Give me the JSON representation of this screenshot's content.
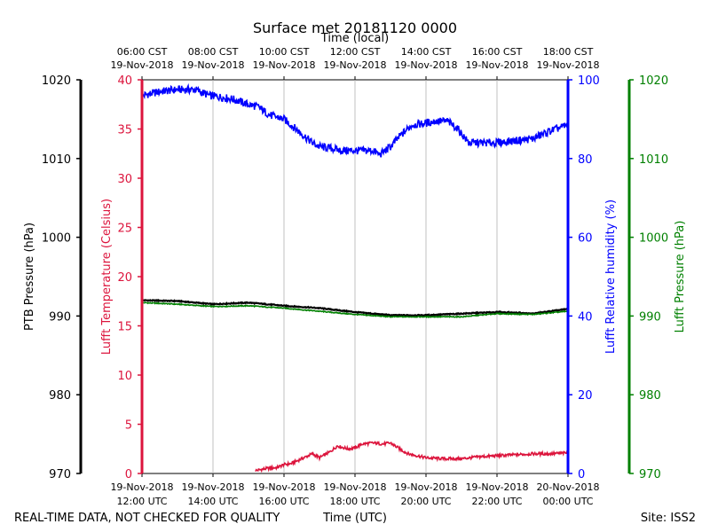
{
  "chart_data": {
    "type": "line",
    "title": "Surface met 20181120 0000",
    "top_axis_label": "Time (local)",
    "bottom_axis_label": "Time (UTC)",
    "footer_left": "REAL-TIME DATA, NOT CHECKED FOR QUALITY",
    "footer_right": "Site: ISS2",
    "x_range_hours_utc": [
      12,
      24
    ],
    "bottom_ticks": [
      {
        "hour": 12,
        "line1": "19-Nov-2018",
        "line2": "12:00 UTC"
      },
      {
        "hour": 14,
        "line1": "19-Nov-2018",
        "line2": "14:00 UTC"
      },
      {
        "hour": 16,
        "line1": "19-Nov-2018",
        "line2": "16:00 UTC"
      },
      {
        "hour": 18,
        "line1": "19-Nov-2018",
        "line2": "18:00 UTC"
      },
      {
        "hour": 20,
        "line1": "19-Nov-2018",
        "line2": "20:00 UTC"
      },
      {
        "hour": 22,
        "line1": "19-Nov-2018",
        "line2": "22:00 UTC"
      },
      {
        "hour": 24,
        "line1": "20-Nov-2018",
        "line2": "00:00 UTC"
      }
    ],
    "top_ticks": [
      {
        "hour": 12,
        "line1": "06:00 CST",
        "line2": "19-Nov-2018"
      },
      {
        "hour": 14,
        "line1": "08:00 CST",
        "line2": "19-Nov-2018"
      },
      {
        "hour": 16,
        "line1": "10:00 CST",
        "line2": "19-Nov-2018"
      },
      {
        "hour": 18,
        "line1": "12:00 CST",
        "line2": "19-Nov-2018"
      },
      {
        "hour": 20,
        "line1": "14:00 CST",
        "line2": "19-Nov-2018"
      },
      {
        "hour": 22,
        "line1": "16:00 CST",
        "line2": "19-Nov-2018"
      },
      {
        "hour": 24,
        "line1": "18:00 CST",
        "line2": "19-Nov-2018"
      }
    ],
    "axes": {
      "ptb_pressure": {
        "label": "PTB Pressure (hPa)",
        "range": [
          970,
          1020
        ],
        "ticks": [
          970,
          980,
          990,
          1000,
          1010,
          1020
        ],
        "color": "#000000"
      },
      "temperature": {
        "label": "Lufft Temperature (Celsius)",
        "range": [
          0,
          40
        ],
        "ticks": [
          0,
          5,
          10,
          15,
          20,
          25,
          30,
          35,
          40
        ],
        "color": "#dc143c"
      },
      "humidity": {
        "label": "Lufft Relative humidity (%)",
        "range": [
          0,
          100
        ],
        "ticks": [
          0,
          20,
          40,
          60,
          80,
          100
        ],
        "color": "#0000ff"
      },
      "lufft_pressure": {
        "label": "Lufft Pressure (hPa)",
        "range": [
          970,
          1020
        ],
        "ticks": [
          970,
          980,
          990,
          1000,
          1010,
          1020
        ],
        "color": "#008000"
      }
    },
    "series": [
      {
        "name": "Lufft Relative humidity (%)",
        "axis": "humidity",
        "color": "#0000ff",
        "x": [
          12.0,
          12.5,
          13.0,
          13.5,
          13.9,
          14.3,
          14.6,
          14.9,
          15.3,
          15.6,
          16.0,
          16.4,
          16.8,
          17.0,
          17.4,
          17.6,
          17.8,
          18.2,
          18.5,
          18.7,
          19.0,
          19.3,
          19.6,
          20.0,
          20.3,
          20.6,
          20.9,
          21.2,
          21.5,
          22.0,
          22.5,
          23.0,
          23.5,
          24.0
        ],
        "y": [
          96,
          97,
          97.5,
          97.5,
          96,
          95.5,
          95,
          94,
          93,
          91,
          90,
          87,
          84,
          83,
          82.5,
          82,
          82,
          82,
          82,
          81,
          83,
          86,
          88.5,
          89,
          89.5,
          89.5,
          87.5,
          84,
          84,
          84,
          84.5,
          85,
          87,
          88.5
        ]
      },
      {
        "name": "PTB Pressure (hPa)",
        "axis": "ptb_pressure",
        "color": "#000000",
        "x": [
          12.0,
          13.0,
          14.0,
          15.0,
          16.0,
          17.0,
          18.0,
          19.0,
          20.0,
          21.0,
          22.0,
          23.0,
          24.0
        ],
        "y": [
          992.0,
          991.9,
          991.5,
          991.7,
          991.3,
          991.0,
          990.5,
          990.1,
          990.1,
          990.3,
          990.5,
          990.3,
          990.9
        ]
      },
      {
        "name": "Lufft Pressure (hPa)",
        "axis": "lufft_pressure",
        "color": "#008000",
        "x": [
          12.0,
          13.0,
          14.0,
          15.0,
          16.0,
          17.0,
          18.0,
          19.0,
          20.0,
          21.0,
          22.0,
          23.0,
          24.0
        ],
        "y": [
          991.7,
          991.5,
          991.2,
          991.3,
          991.0,
          990.6,
          990.2,
          989.9,
          989.9,
          989.9,
          990.3,
          990.2,
          990.6
        ]
      },
      {
        "name": "Lufft Temperature (Celsius)",
        "axis": "temperature",
        "color": "#dc143c",
        "x": [
          15.2,
          15.5,
          15.8,
          16.0,
          16.2,
          16.5,
          16.8,
          17.0,
          17.3,
          17.5,
          17.8,
          18.0,
          18.2,
          18.5,
          18.8,
          19.0,
          19.3,
          19.5,
          20.0,
          20.5,
          21.0,
          21.5,
          22.0,
          22.5,
          23.0,
          23.5,
          24.0
        ],
        "y": [
          0.3,
          0.5,
          0.6,
          0.9,
          1.0,
          1.5,
          2.0,
          1.6,
          2.2,
          2.8,
          2.5,
          2.6,
          3.0,
          3.1,
          3.0,
          3.1,
          2.4,
          2.0,
          1.6,
          1.5,
          1.5,
          1.7,
          1.8,
          1.9,
          2.0,
          2.0,
          2.1
        ]
      }
    ]
  }
}
